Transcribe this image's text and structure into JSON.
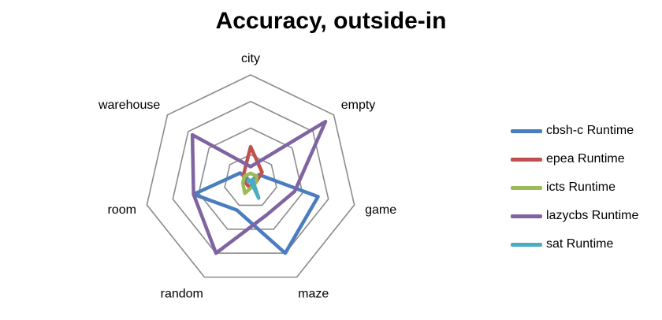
{
  "chart_data": {
    "type": "radar",
    "title": "Accuracy, outside-in",
    "categories": [
      "city",
      "empty",
      "game",
      "maze",
      "random",
      "room",
      "warehouse"
    ],
    "rlim": [
      0,
      4
    ],
    "grid": true,
    "legend_position": "right",
    "series": [
      {
        "name": "cbsh-c Runtime",
        "color": "#4a7dbf",
        "values": [
          0.0,
          0.4,
          2.6,
          3.0,
          1.2,
          2.2,
          0.5
        ]
      },
      {
        "name": "epea Runtime",
        "color": "#c0504d",
        "values": [
          1.3,
          0.55,
          0.2,
          0.2,
          0.2,
          0.2,
          0.35
        ]
      },
      {
        "name": "icts Runtime",
        "color": "#9bbb59",
        "values": [
          0.3,
          0.3,
          0.2,
          0.2,
          0.5,
          0.3,
          0.3
        ]
      },
      {
        "name": "lazycbs Runtime",
        "color": "#8064a2",
        "values": [
          0.55,
          3.6,
          1.7,
          1.4,
          3.0,
          2.2,
          2.8
        ]
      },
      {
        "name": "sat Runtime",
        "color": "#4bacc6",
        "values": [
          0.0,
          0.1,
          0.1,
          0.7,
          0.0,
          0.1,
          0.1
        ]
      }
    ]
  }
}
